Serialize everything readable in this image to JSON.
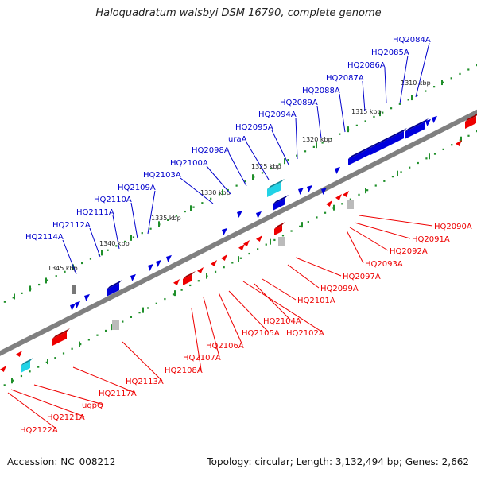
{
  "title": "Haloquadratum walsbyi DSM 16790, complete genome",
  "footer": {
    "accession": "Accession: NC_008212",
    "summary": "Topology: circular; Length: 3,132,494 bp; Genes: 2,662"
  },
  "colors": {
    "forward": "#0000cc",
    "reverse": "#ee0000",
    "rna_cyan": "#22d3e6",
    "pseudogene_gray": "#999999",
    "axis_gray": "#808080",
    "dots_green": "#1f8f2a"
  },
  "kbp_ticks": [
    "1310 kbp",
    "1315 kbp",
    "1320 kbp",
    "1325 kbp",
    "1330 kbp",
    "1335 kbp",
    "1340 kbp",
    "1345 kbp"
  ],
  "upper_labels": [
    "HQ2084A",
    "HQ2085A",
    "HQ2086A",
    "HQ2087A",
    "HQ2088A",
    "HQ2089A",
    "HQ2094A",
    "HQ2095A",
    "uraA",
    "HQ2098A",
    "HQ2100A",
    "HQ2103A",
    "HQ2109A",
    "HQ2110A",
    "HQ2111A",
    "HQ2112A",
    "HQ2114A"
  ],
  "lower_labels": [
    "HQ2090A",
    "HQ2091A",
    "HQ2092A",
    "HQ2093A",
    "HQ2097A",
    "HQ2099A",
    "HQ2101A",
    "HQ2104A",
    "HQ2102A",
    "HQ2105A",
    "HQ2106A",
    "HQ2107A",
    "HQ2108A",
    "HQ2113A",
    "HQ2117A",
    "ugpQ",
    "HQ2121A",
    "HQ2122A"
  ]
}
